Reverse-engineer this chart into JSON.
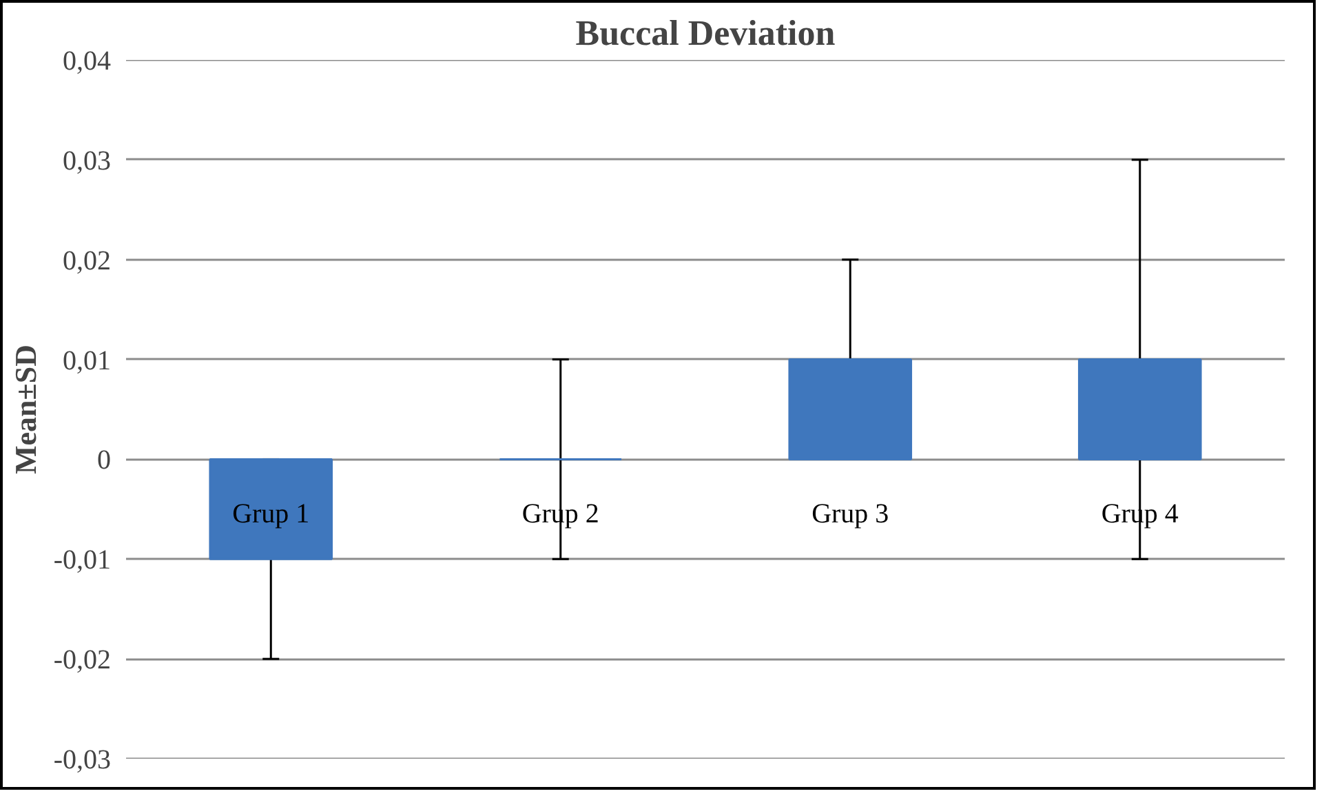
{
  "chart_data": {
    "type": "bar",
    "title": "Buccal Deviation",
    "ylabel": "Mean±SD",
    "categories": [
      "Grup 1",
      "Grup 2",
      "Grup 3",
      "Grup 4"
    ],
    "values": [
      -0.01,
      0,
      0.01,
      0.01
    ],
    "errors": [
      0.01,
      0.01,
      0.01,
      0.02
    ],
    "color": "#3f77bd",
    "ylim": [
      -0.03,
      0.04
    ],
    "yticks": [
      {
        "value": -0.03,
        "label": "-0,03"
      },
      {
        "value": -0.02,
        "label": "-0,02"
      },
      {
        "value": -0.01,
        "label": "-0,01"
      },
      0,
      {
        "value": 0.01,
        "label": "0,01"
      },
      {
        "value": 0.02,
        "label": "0,02"
      },
      {
        "value": 0.03,
        "label": "0,03"
      },
      {
        "value": 0.04,
        "label": "0,04"
      }
    ],
    "grid": "y"
  }
}
